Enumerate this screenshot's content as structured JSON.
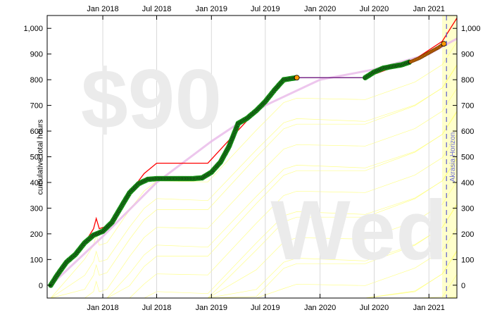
{
  "chart_data": {
    "type": "line",
    "title": "",
    "ylabel": "cumulative total hours",
    "xlabel": "",
    "ylim": [
      -50,
      1050
    ],
    "x_range": [
      "2017-06-28",
      "2021-04-05"
    ],
    "y_ticks": [
      0,
      100,
      200,
      300,
      400,
      500,
      600,
      700,
      800,
      900,
      1000
    ],
    "y_tick_labels": [
      "0",
      "100",
      "200",
      "300",
      "400",
      "500",
      "600",
      "700",
      "800",
      "900",
      "1,000"
    ],
    "x_ticks": [
      {
        "date": "2018-01-01",
        "label": "Jan 2018"
      },
      {
        "date": "2018-07-01",
        "label": "Jul 2018"
      },
      {
        "date": "2019-01-01",
        "label": "Jan 2019"
      },
      {
        "date": "2019-07-01",
        "label": "Jul 2019"
      },
      {
        "date": "2020-01-01",
        "label": "Jan 2020"
      },
      {
        "date": "2020-07-01",
        "label": "Jul 2020"
      },
      {
        "date": "2021-01-01",
        "label": "Jan 2021"
      }
    ],
    "grid": true,
    "watermark_top": "$90",
    "watermark_bottom": "Wed",
    "annotation": "Akrasia Horizon",
    "horizon_date": "2021-03-01",
    "series": [
      {
        "role": "datapoints",
        "color": "#1a9e1a",
        "points": [
          [
            "2017-07-10",
            0
          ],
          [
            "2017-08-01",
            40
          ],
          [
            "2017-09-01",
            90
          ],
          [
            "2017-10-01",
            120
          ],
          [
            "2017-11-01",
            165
          ],
          [
            "2017-12-01",
            195
          ],
          [
            "2018-01-01",
            210
          ],
          [
            "2018-02-01",
            245
          ],
          [
            "2018-03-01",
            300
          ],
          [
            "2018-04-01",
            360
          ],
          [
            "2018-05-01",
            395
          ],
          [
            "2018-06-01",
            412
          ],
          [
            "2018-07-01",
            415
          ],
          [
            "2018-08-01",
            415
          ],
          [
            "2018-09-01",
            415
          ],
          [
            "2018-10-01",
            415
          ],
          [
            "2018-11-01",
            415
          ],
          [
            "2018-12-01",
            418
          ],
          [
            "2019-01-01",
            440
          ],
          [
            "2019-02-01",
            480
          ],
          [
            "2019-03-01",
            540
          ],
          [
            "2019-04-01",
            630
          ],
          [
            "2019-05-01",
            650
          ],
          [
            "2019-06-01",
            680
          ],
          [
            "2019-07-01",
            715
          ],
          [
            "2019-08-01",
            760
          ],
          [
            "2019-09-01",
            800
          ],
          [
            "2019-10-15",
            808
          ],
          [
            "2020-06-01",
            808
          ],
          [
            "2020-07-01",
            830
          ],
          [
            "2020-08-01",
            845
          ],
          [
            "2020-09-01",
            852
          ],
          [
            "2020-10-01",
            858
          ],
          [
            "2020-11-01",
            870
          ],
          [
            "2020-12-01",
            885
          ],
          [
            "2021-01-01",
            905
          ],
          [
            "2021-02-01",
            925
          ],
          [
            "2021-02-20",
            940
          ]
        ]
      },
      {
        "role": "bright-red-line",
        "color": "#ff0000",
        "points": [
          [
            "2017-07-10",
            10
          ],
          [
            "2017-11-01",
            165
          ],
          [
            "2017-12-01",
            220
          ],
          [
            "2017-12-10",
            260
          ],
          [
            "2017-12-20",
            220
          ],
          [
            "2018-01-15",
            230
          ],
          [
            "2018-04-01",
            360
          ],
          [
            "2018-05-20",
            435
          ],
          [
            "2018-07-01",
            475
          ],
          [
            "2018-12-20",
            475
          ],
          [
            "2019-06-01",
            680
          ],
          [
            "2019-09-01",
            790
          ],
          [
            "2019-10-15",
            808
          ],
          [
            "2020-06-01",
            808
          ],
          [
            "2020-11-15",
            880
          ],
          [
            "2021-02-15",
            950
          ],
          [
            "2021-04-05",
            1040
          ]
        ]
      },
      {
        "role": "rolling-average",
        "color": "#e8b8e8",
        "points": [
          [
            "2017-07-10",
            0
          ],
          [
            "2018-01-01",
            190
          ],
          [
            "2018-07-01",
            400
          ],
          [
            "2019-01-01",
            560
          ],
          [
            "2019-07-01",
            700
          ],
          [
            "2020-01-01",
            800
          ],
          [
            "2020-07-01",
            840
          ],
          [
            "2021-01-01",
            900
          ],
          [
            "2021-04-05",
            960
          ]
        ]
      }
    ]
  }
}
